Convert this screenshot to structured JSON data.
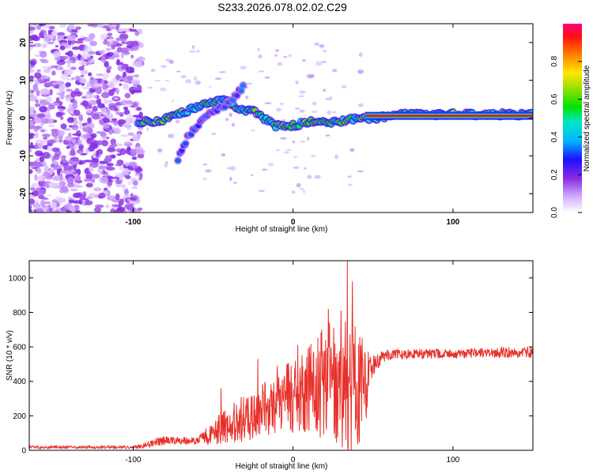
{
  "figure_title": "S233.2026.078.02.02.C29",
  "chart_data": [
    {
      "type": "heatmap",
      "xlabel": "Height of straight line (km)",
      "ylabel": "Frequency (Hz)",
      "xlim": [
        -165,
        150
      ],
      "ylim": [
        -25,
        25
      ],
      "xticks": [
        -100,
        0,
        100
      ],
      "yticks": [
        -20,
        -10,
        0,
        10,
        20
      ],
      "colorbar": {
        "label": "Normalized spectral amplitude",
        "range": [
          0,
          1
        ],
        "ticks": [
          "0.0",
          "0.2",
          "0.4",
          "0.6",
          "0.8"
        ],
        "tick_values": [
          0,
          0.2,
          0.4,
          0.6,
          0.8
        ]
      },
      "features": [
        {
          "name": "noise-region",
          "x_range": [
            -165,
            -95
          ],
          "y_range": [
            -25,
            25
          ],
          "amplitude": 0.15
        },
        {
          "name": "main-ridge",
          "points": [
            [
              -97,
              -1
            ],
            [
              -85,
              -1
            ],
            [
              -72,
              1
            ],
            [
              -60,
              3
            ],
            [
              -50,
              4
            ],
            [
              -42,
              5
            ],
            [
              -32,
              2
            ],
            [
              -25,
              2
            ],
            [
              -18,
              0
            ],
            [
              -12,
              -2
            ],
            [
              -5,
              -2
            ],
            [
              0,
              -2
            ],
            [
              10,
              -1
            ],
            [
              20,
              -1
            ],
            [
              30,
              -1
            ],
            [
              40,
              0
            ],
            [
              50,
              0
            ],
            [
              70,
              1
            ],
            [
              100,
              1
            ],
            [
              150,
              1
            ]
          ],
          "amplitude": 0.55
        },
        {
          "name": "branch-ridge",
          "points": [
            [
              -72,
              -11
            ],
            [
              -66,
              -5
            ],
            [
              -58,
              -1
            ],
            [
              -50,
              2
            ],
            [
              -40,
              4
            ],
            [
              -30,
              9
            ]
          ],
          "amplitude": 0.3
        },
        {
          "name": "steady-band",
          "x_range": [
            45,
            150
          ],
          "frequency": 0.6,
          "amplitude": 0.95
        }
      ]
    },
    {
      "type": "line",
      "xlabel": "Height of straight line (km)",
      "ylabel": "SNR (10 * v/v)",
      "xlim": [
        -165,
        150
      ],
      "ylim": [
        0,
        1100
      ],
      "xticks": [
        -100,
        0,
        100
      ],
      "yticks": [
        0,
        200,
        400,
        600,
        800,
        1000
      ],
      "series": [
        {
          "name": "SNR",
          "color": "#e8302a",
          "envelope": {
            "x": [
              -165,
              -100,
              -95,
              -85,
              -75,
              -60,
              -50,
              -40,
              -30,
              -20,
              -10,
              0,
              10,
              20,
              25,
              30,
              35,
              40,
              45,
              50,
              55,
              60,
              80,
              100,
              120,
              150
            ],
            "base": [
              18,
              18,
              22,
              50,
              60,
              55,
              100,
              150,
              190,
              230,
              280,
              320,
              360,
              390,
              400,
              400,
              380,
              350,
              390,
              480,
              540,
              555,
              560,
              560,
              565,
              570
            ],
            "noise": [
              8,
              8,
              12,
              30,
              28,
              20,
              70,
              110,
              140,
              160,
              180,
              220,
              260,
              330,
              360,
              380,
              390,
              360,
              250,
              80,
              35,
              30,
              28,
              28,
              30,
              32
            ],
            "peaks": [
              [
                -45,
                360
              ],
              [
                -22,
                530
              ],
              [
                -10,
                490
              ],
              [
                3,
                610
              ],
              [
                8,
                470
              ],
              [
                18,
                700
              ],
              [
                22,
                820
              ],
              [
                30,
                810
              ],
              [
                34,
                1100
              ],
              [
                37,
                980
              ]
            ]
          }
        }
      ]
    }
  ]
}
